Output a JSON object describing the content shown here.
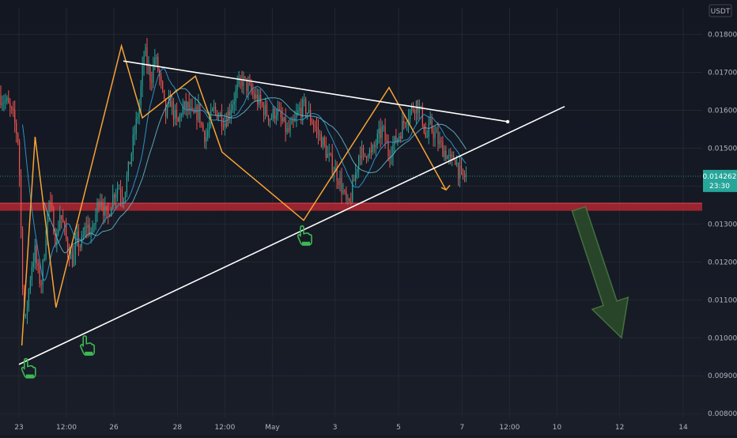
{
  "chart_data": {
    "type": "candlestick",
    "currency": "USDT",
    "y_axis": {
      "ticks": [
        0.008,
        0.009,
        0.01,
        0.011,
        0.012,
        0.013,
        0.014,
        0.015,
        0.016,
        0.017,
        0.018
      ],
      "tick_labels": [
        "0.008000",
        "0.009000",
        "0.010000",
        "0.011000",
        "0.012000",
        "0.013000",
        "0.014000",
        "0.015000",
        "0.016000",
        "0.017000",
        "0.018000"
      ],
      "range": [
        0.0079,
        0.0187
      ]
    },
    "x_axis": {
      "ticks": [
        {
          "label": "23",
          "day": 0
        },
        {
          "label": "12:00",
          "day": 0.5
        },
        {
          "label": "26",
          "day": 1
        },
        {
          "label": "28",
          "day": 1.67
        },
        {
          "label": "12:00",
          "day": 2.17
        },
        {
          "label": "May",
          "day": 2.67
        },
        {
          "label": "3",
          "day": 3.33
        },
        {
          "label": "5",
          "day": 4
        },
        {
          "label": "7",
          "day": 4.67
        },
        {
          "label": "12:00",
          "day": 5.17
        },
        {
          "label": "10",
          "day": 5.67
        },
        {
          "label": "12",
          "day": 6.33
        },
        {
          "label": "14",
          "day": 7
        }
      ],
      "range": [
        -0.2,
        7.2
      ]
    },
    "last_price": {
      "value": "0.014262",
      "countdown": "23:30",
      "numeric": 0.014262
    },
    "support_zone": [
      0.01335,
      0.01355
    ],
    "price_path": [
      [
        -0.2,
        0.0164
      ],
      [
        -0.12,
        0.0162
      ],
      [
        -0.05,
        0.0158
      ],
      [
        0.0,
        0.0152
      ],
      [
        0.02,
        0.0138
      ],
      [
        0.04,
        0.0118
      ],
      [
        0.07,
        0.0102
      ],
      [
        0.1,
        0.011
      ],
      [
        0.14,
        0.0119
      ],
      [
        0.18,
        0.0123
      ],
      [
        0.2,
        0.0118
      ],
      [
        0.24,
        0.0114
      ],
      [
        0.28,
        0.0124
      ],
      [
        0.32,
        0.0136
      ],
      [
        0.36,
        0.0132
      ],
      [
        0.4,
        0.0125
      ],
      [
        0.44,
        0.0133
      ],
      [
        0.48,
        0.0129
      ],
      [
        0.52,
        0.0124
      ],
      [
        0.58,
        0.012
      ],
      [
        0.62,
        0.0126
      ],
      [
        0.66,
        0.0124
      ],
      [
        0.72,
        0.013
      ],
      [
        0.78,
        0.0127
      ],
      [
        0.82,
        0.0133
      ],
      [
        0.86,
        0.0138
      ],
      [
        0.9,
        0.0134
      ],
      [
        0.94,
        0.0131
      ],
      [
        0.98,
        0.0136
      ],
      [
        1.02,
        0.0139
      ],
      [
        1.06,
        0.014
      ],
      [
        1.1,
        0.0137
      ],
      [
        1.14,
        0.0141
      ],
      [
        1.2,
        0.015
      ],
      [
        1.24,
        0.0156
      ],
      [
        1.28,
        0.0162
      ],
      [
        1.33,
        0.0176
      ],
      [
        1.36,
        0.0172
      ],
      [
        1.4,
        0.0168
      ],
      [
        1.44,
        0.0174
      ],
      [
        1.48,
        0.017
      ],
      [
        1.52,
        0.0164
      ],
      [
        1.56,
        0.0158
      ],
      [
        1.6,
        0.0163
      ],
      [
        1.64,
        0.0159
      ],
      [
        1.68,
        0.0156
      ],
      [
        1.72,
        0.016
      ],
      [
        1.78,
        0.0161
      ],
      [
        1.84,
        0.0158
      ],
      [
        1.9,
        0.016
      ],
      [
        1.94,
        0.0155
      ],
      [
        1.98,
        0.0153
      ],
      [
        2.02,
        0.0157
      ],
      [
        2.06,
        0.016
      ],
      [
        2.12,
        0.0159
      ],
      [
        2.18,
        0.0157
      ],
      [
        2.24,
        0.0161
      ],
      [
        2.3,
        0.0165
      ],
      [
        2.36,
        0.0168
      ],
      [
        2.42,
        0.0166
      ],
      [
        2.48,
        0.0164
      ],
      [
        2.54,
        0.0162
      ],
      [
        2.6,
        0.016
      ],
      [
        2.66,
        0.0158
      ],
      [
        2.72,
        0.016
      ],
      [
        2.78,
        0.0157
      ],
      [
        2.84,
        0.0154
      ],
      [
        2.9,
        0.0156
      ],
      [
        2.96,
        0.016
      ],
      [
        3.02,
        0.0161
      ],
      [
        3.08,
        0.0158
      ],
      [
        3.14,
        0.0155
      ],
      [
        3.2,
        0.0152
      ],
      [
        3.26,
        0.0148
      ],
      [
        3.32,
        0.0145
      ],
      [
        3.38,
        0.0142
      ],
      [
        3.44,
        0.0137
      ],
      [
        3.48,
        0.0134
      ],
      [
        3.52,
        0.0139
      ],
      [
        3.56,
        0.0144
      ],
      [
        3.6,
        0.015
      ],
      [
        3.64,
        0.0147
      ],
      [
        3.68,
        0.015
      ],
      [
        3.72,
        0.0148
      ],
      [
        3.78,
        0.0152
      ],
      [
        3.84,
        0.0155
      ],
      [
        3.9,
        0.0149
      ],
      [
        3.96,
        0.0151
      ],
      [
        4.02,
        0.0154
      ],
      [
        4.08,
        0.0158
      ],
      [
        4.14,
        0.016
      ],
      [
        4.2,
        0.0162
      ],
      [
        4.26,
        0.0158
      ],
      [
        4.3,
        0.0152
      ],
      [
        4.34,
        0.0156
      ],
      [
        4.38,
        0.0154
      ],
      [
        4.44,
        0.0151
      ],
      [
        4.5,
        0.0149
      ],
      [
        4.56,
        0.0146
      ],
      [
        4.6,
        0.0148
      ],
      [
        4.64,
        0.0144
      ],
      [
        4.68,
        0.0142
      ],
      [
        4.72,
        0.0143
      ]
    ],
    "pattern_zigzag": [
      [
        0.03,
        0.0098
      ],
      [
        0.17,
        0.0153
      ],
      [
        0.39,
        0.0108
      ],
      [
        1.08,
        0.0177
      ],
      [
        1.3,
        0.0158
      ],
      [
        1.86,
        0.0169
      ],
      [
        2.14,
        0.0149
      ],
      [
        3.0,
        0.0131
      ],
      [
        3.9,
        0.0166
      ],
      [
        4.5,
        0.0139
      ]
    ],
    "trendlines": [
      {
        "from": [
          0.0,
          0.0093
        ],
        "to": [
          5.75,
          0.0161
        ]
      },
      {
        "from": [
          1.1,
          0.0173
        ],
        "to": [
          5.15,
          0.0157
        ]
      }
    ],
    "forecast_arrow": {
      "from": [
        5.9,
        0.0134
      ],
      "to": [
        6.35,
        0.01
      ]
    },
    "markers": [
      {
        "at": [
          0.09,
          0.0092
        ]
      },
      {
        "at": [
          0.71,
          0.0098
        ]
      },
      {
        "at": [
          3.0,
          0.0127
        ]
      }
    ],
    "colors": {
      "up": "#26a69a",
      "down": "#ef5350",
      "pattern": "#f7a334",
      "trendline": "#ffffff",
      "support_zone": "#b22833",
      "marker": "#3db854",
      "forecast_arrow": "#2a4a2a",
      "ma_fast": "#2d9fd8",
      "ma_slow": "#64b5c6",
      "price_label_bg": "#26a69a"
    }
  }
}
